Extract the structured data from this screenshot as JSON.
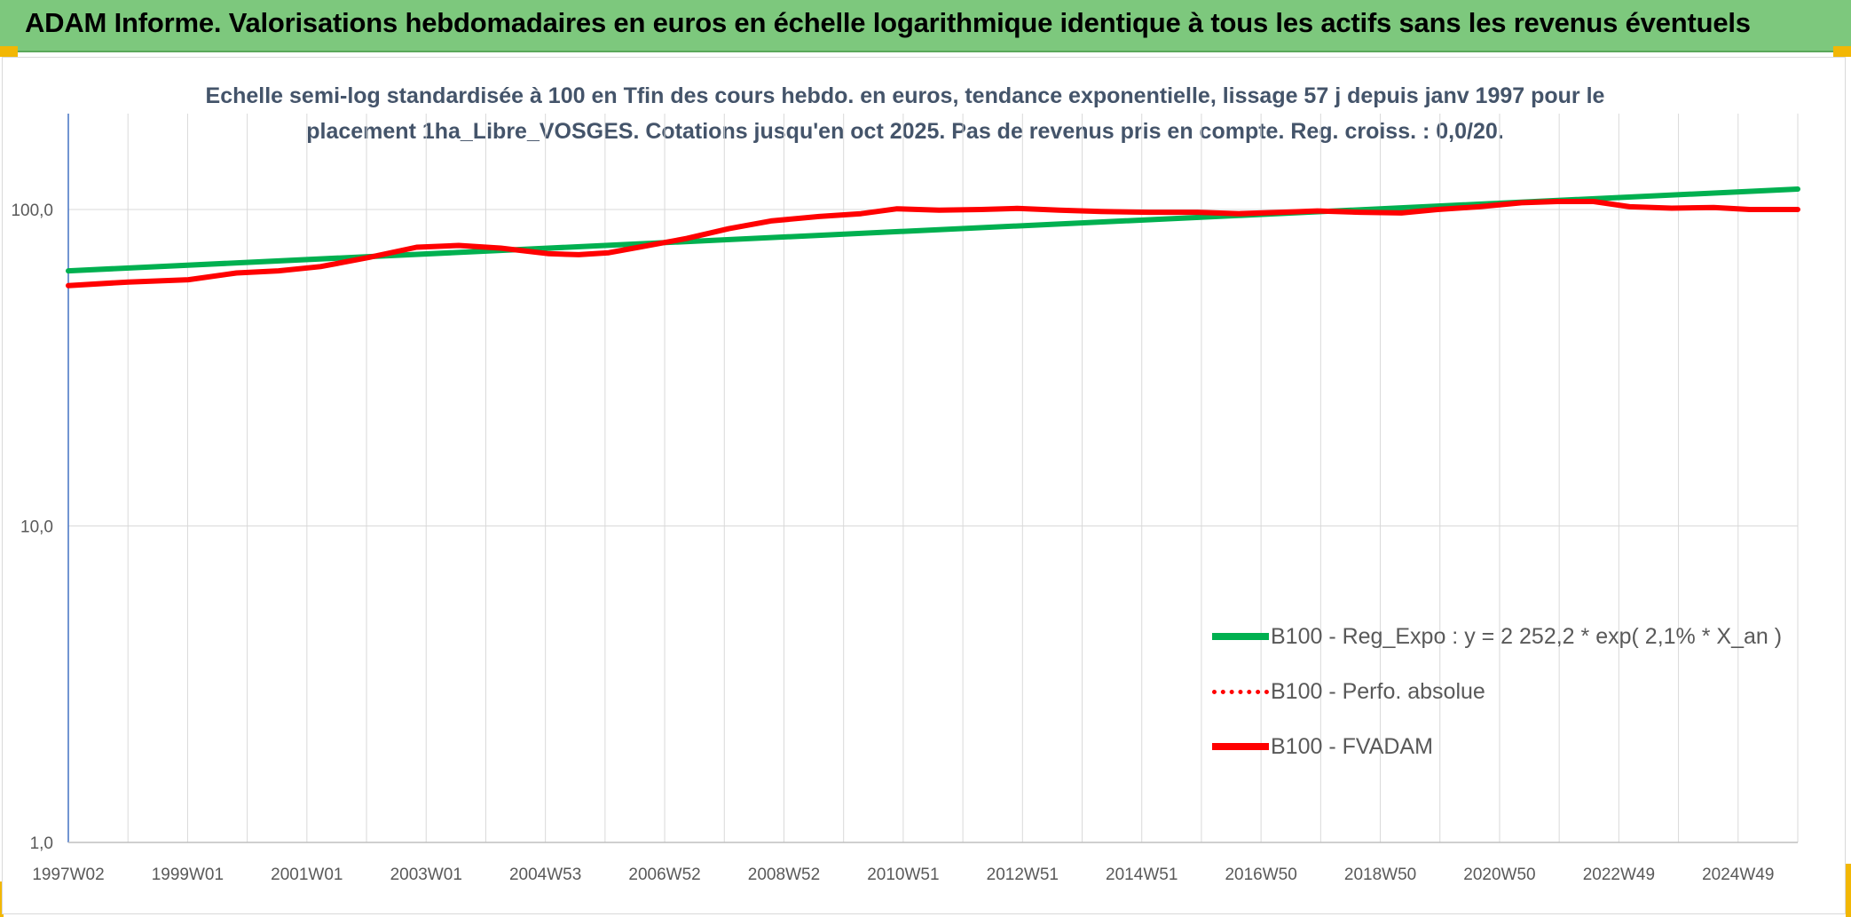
{
  "banner": {
    "title": "ADAM Informe. Valorisations hebdomadaires en euros en échelle logarithmique identique à tous les actifs sans les revenus éventuels"
  },
  "colors": {
    "banner": "#7dc87d",
    "trend": "#00b050",
    "fvadam": "#ff0000",
    "title_text": "#44546a",
    "axis_text": "#595959",
    "grid": "#d9d9d9"
  },
  "chart_data": {
    "type": "line",
    "title_line1": "Echelle semi-log standardisée à 100 en Tfin des cours hebdo. en euros, tendance exponentielle, lissage 57 j depuis janv 1997 pour le",
    "title_line2": "placement 1ha_Libre_VOSGES. Cotations jusqu'en oct 2025. Pas de revenus pris en compte. Reg. croiss. : 0,0/20.",
    "y_scale": "log",
    "ylim": [
      1,
      100
    ],
    "y_ticks": [
      "100,0",
      "10,0",
      "1,0"
    ],
    "y_tick_values": [
      100,
      10,
      1
    ],
    "x_tick_labels": [
      "1997W02",
      "1999W01",
      "2001W01",
      "2003W01",
      "2004W53",
      "2006W52",
      "2008W52",
      "2010W51",
      "2012W51",
      "2014W51",
      "2016W50",
      "2018W50",
      "2020W50",
      "2022W49",
      "2024W49"
    ],
    "xlim": [
      1997.0,
      2025.8
    ],
    "grid": true,
    "legend_position": "lower-right",
    "series": [
      {
        "name": "B100 - Reg_Expo : y = 2 252,2 * exp( 2,1% *  X_an )",
        "style": "solid-green",
        "x": [
          1997.0,
          2025.8
        ],
        "y": [
          64.0,
          116.0
        ]
      },
      {
        "name": "B100 - Perfo. absolue",
        "style": "dotted-red",
        "x": [],
        "y": []
      },
      {
        "name": "B100 - FVADAM",
        "style": "solid-red",
        "x": [
          1997.0,
          1998.0,
          1999.0,
          1999.8,
          2000.5,
          2001.2,
          2002.0,
          2002.8,
          2003.5,
          2004.2,
          2005.0,
          2005.5,
          2006.0,
          2006.5,
          2007.3,
          2008.0,
          2008.7,
          2009.5,
          2010.2,
          2010.8,
          2011.5,
          2012.2,
          2012.8,
          2013.5,
          2014.2,
          2015.0,
          2015.8,
          2016.5,
          2017.2,
          2017.8,
          2018.5,
          2019.2,
          2019.8,
          2020.5,
          2021.2,
          2021.8,
          2022.4,
          2023.0,
          2023.7,
          2024.4,
          2025.0,
          2025.8
        ],
        "y": [
          57.5,
          59.0,
          60.0,
          63.0,
          64.0,
          66.0,
          70.5,
          76.0,
          77.0,
          75.5,
          72.5,
          72.0,
          73.0,
          76.0,
          81.0,
          87.0,
          92.0,
          95.0,
          97.0,
          100.5,
          99.5,
          100.0,
          100.8,
          99.5,
          98.5,
          98.0,
          98.0,
          97.0,
          98.0,
          99.0,
          98.0,
          97.5,
          100.0,
          102.0,
          105.0,
          106.0,
          106.0,
          102.0,
          101.0,
          101.5,
          100.0,
          100.0
        ]
      }
    ]
  }
}
